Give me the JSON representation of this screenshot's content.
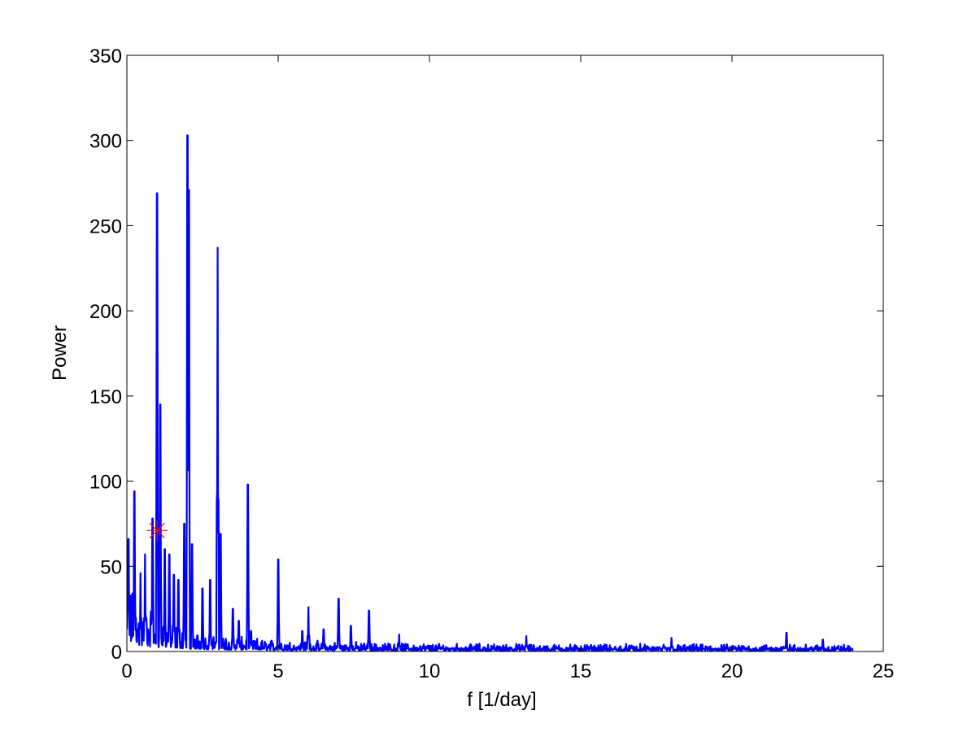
{
  "chart_data": {
    "type": "line",
    "title": "",
    "xlabel": "f [1/day]",
    "ylabel": "Power",
    "xlim": [
      0,
      25
    ],
    "ylim": [
      0,
      350
    ],
    "xticks": [
      0,
      5,
      10,
      15,
      20,
      25
    ],
    "yticks": [
      0,
      50,
      100,
      150,
      200,
      250,
      300,
      350
    ],
    "grid": false,
    "legend": "none",
    "series_color": "#0000ff",
    "marker_color": "#ff0000",
    "peaks": [
      {
        "x": 0.25,
        "y": 94
      },
      {
        "x": 1.0,
        "y": 269
      },
      {
        "x": 2.0,
        "y": 303
      },
      {
        "x": 3.0,
        "y": 237
      },
      {
        "x": 4.0,
        "y": 98
      },
      {
        "x": 5.0,
        "y": 54
      },
      {
        "x": 6.0,
        "y": 26
      },
      {
        "x": 7.0,
        "y": 31
      },
      {
        "x": 8.0,
        "y": 24
      }
    ],
    "secondary_peaks": [
      {
        "x": 0.05,
        "y": 66
      },
      {
        "x": 0.45,
        "y": 46
      },
      {
        "x": 0.6,
        "y": 57
      },
      {
        "x": 0.85,
        "y": 78
      },
      {
        "x": 1.1,
        "y": 145
      },
      {
        "x": 1.25,
        "y": 60
      },
      {
        "x": 1.4,
        "y": 57
      },
      {
        "x": 1.55,
        "y": 45
      },
      {
        "x": 1.7,
        "y": 42
      },
      {
        "x": 1.9,
        "y": 75
      },
      {
        "x": 2.05,
        "y": 271
      },
      {
        "x": 2.15,
        "y": 63
      },
      {
        "x": 2.5,
        "y": 37
      },
      {
        "x": 2.75,
        "y": 42
      },
      {
        "x": 3.1,
        "y": 69
      },
      {
        "x": 3.5,
        "y": 25
      },
      {
        "x": 3.7,
        "y": 18
      },
      {
        "x": 4.1,
        "y": 12
      },
      {
        "x": 5.8,
        "y": 12
      },
      {
        "x": 6.5,
        "y": 13
      },
      {
        "x": 7.4,
        "y": 15
      },
      {
        "x": 9.0,
        "y": 10
      },
      {
        "x": 13.2,
        "y": 9
      },
      {
        "x": 18.0,
        "y": 8
      },
      {
        "x": 21.8,
        "y": 11
      },
      {
        "x": 23.0,
        "y": 7
      }
    ],
    "noise_level": 3,
    "x_end": 24,
    "marker": {
      "x": 1.0,
      "y": 71,
      "symbol": "*"
    }
  }
}
